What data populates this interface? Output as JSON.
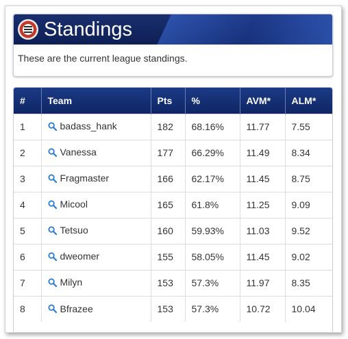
{
  "panel": {
    "title": "Standings",
    "description": "These are the current league standings."
  },
  "table": {
    "columns": [
      "#",
      "Team",
      "Pts",
      "%",
      "AVM*",
      "ALM*"
    ],
    "rows": [
      [
        "1",
        "badass_hank",
        "182",
        "68.16%",
        "11.77",
        "7.55"
      ],
      [
        "2",
        "Vanessa",
        "177",
        "66.29%",
        "11.49",
        "8.34"
      ],
      [
        "3",
        "Fragmaster",
        "166",
        "62.17%",
        "11.45",
        "8.75"
      ],
      [
        "4",
        "Micool",
        "165",
        "61.8%",
        "11.25",
        "9.09"
      ],
      [
        "5",
        "Tetsuo",
        "160",
        "59.93%",
        "11.03",
        "9.52"
      ],
      [
        "6",
        "dweomer",
        "155",
        "58.05%",
        "11.45",
        "9.02"
      ],
      [
        "7",
        "Milyn",
        "153",
        "57.3%",
        "11.97",
        "8.35"
      ],
      [
        "8",
        "Bfrazee",
        "153",
        "57.3%",
        "10.72",
        "10.04"
      ]
    ]
  },
  "colors": {
    "header_bg": "#0f2663",
    "link_icon": "#2e7fd1"
  },
  "icons": {
    "team_link": "search-icon",
    "logo": "league-logo-icon"
  }
}
